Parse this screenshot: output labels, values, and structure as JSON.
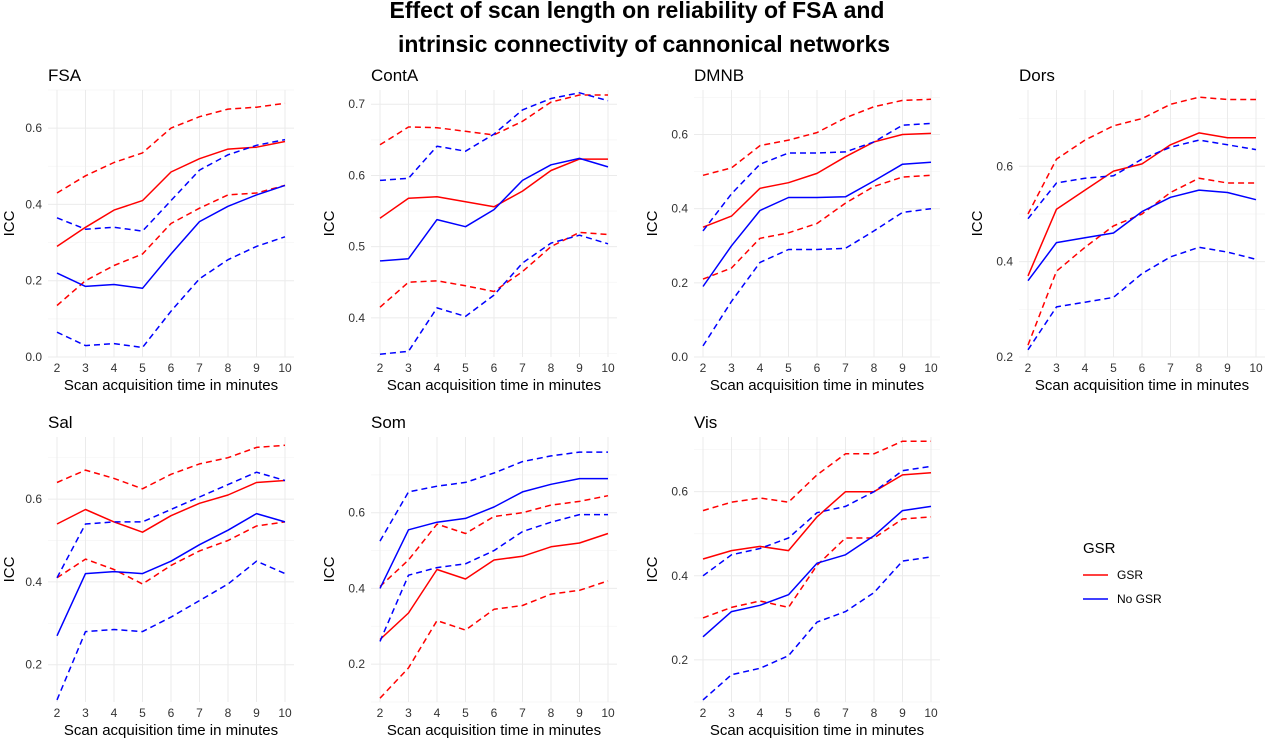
{
  "figure": {
    "title_line1": "Effect of scan length on reliability of FSA and",
    "title_line2": "intrinsic connectivity of cannonical networks"
  },
  "legend": {
    "title": "GSR",
    "items": [
      {
        "label": "GSR",
        "color": "#ff0000"
      },
      {
        "label": "No GSR",
        "color": "#0000ff"
      }
    ]
  },
  "colors": {
    "gsr": "#ff0000",
    "nogsr": "#0000ff"
  },
  "chart_data": [
    {
      "type": "line",
      "title": "FSA",
      "xlabel": "Scan acquisition time in minutes",
      "ylabel": "ICC",
      "x": [
        2,
        3,
        4,
        5,
        6,
        7,
        8,
        9,
        10
      ],
      "xlim": [
        2,
        10
      ],
      "ylim": [
        0,
        0.7
      ],
      "yticks": [
        0.0,
        0.2,
        0.4,
        0.6
      ],
      "ytick_labels": [
        "0.0",
        "0.2",
        "0.4",
        "0.6"
      ],
      "series": [
        {
          "group": "GSR",
          "kind": "estimate",
          "values": [
            0.29,
            0.34,
            0.385,
            0.41,
            0.485,
            0.52,
            0.545,
            0.55,
            0.565
          ]
        },
        {
          "group": "GSR",
          "kind": "upper",
          "values": [
            0.43,
            0.475,
            0.51,
            0.535,
            0.6,
            0.63,
            0.65,
            0.655,
            0.665
          ]
        },
        {
          "group": "GSR",
          "kind": "lower",
          "values": [
            0.135,
            0.2,
            0.24,
            0.27,
            0.35,
            0.39,
            0.425,
            0.43,
            0.45
          ]
        },
        {
          "group": "No GSR",
          "kind": "estimate",
          "values": [
            0.22,
            0.185,
            0.19,
            0.18,
            0.27,
            0.355,
            0.395,
            0.425,
            0.45
          ]
        },
        {
          "group": "No GSR",
          "kind": "upper",
          "values": [
            0.365,
            0.335,
            0.34,
            0.33,
            0.41,
            0.49,
            0.53,
            0.555,
            0.57
          ]
        },
        {
          "group": "No GSR",
          "kind": "lower",
          "values": [
            0.065,
            0.03,
            0.035,
            0.025,
            0.12,
            0.205,
            0.255,
            0.29,
            0.315
          ]
        }
      ]
    },
    {
      "type": "line",
      "title": "ContA",
      "xlabel": "Scan acquisition time in minutes",
      "ylabel": "ICC",
      "x": [
        2,
        3,
        4,
        5,
        6,
        7,
        8,
        9,
        10
      ],
      "xlim": [
        2,
        10
      ],
      "ylim": [
        0.345,
        0.72
      ],
      "yticks": [
        0.4,
        0.5,
        0.6,
        0.7
      ],
      "ytick_labels": [
        "0.4",
        "0.5",
        "0.6",
        "0.7"
      ],
      "series": [
        {
          "group": "GSR",
          "kind": "estimate",
          "values": [
            0.54,
            0.568,
            0.57,
            0.563,
            0.556,
            0.578,
            0.607,
            0.623,
            0.623
          ]
        },
        {
          "group": "GSR",
          "kind": "upper",
          "values": [
            0.643,
            0.668,
            0.667,
            0.662,
            0.657,
            0.676,
            0.703,
            0.713,
            0.713
          ]
        },
        {
          "group": "GSR",
          "kind": "lower",
          "values": [
            0.415,
            0.45,
            0.452,
            0.445,
            0.437,
            0.465,
            0.5,
            0.52,
            0.517
          ]
        },
        {
          "group": "No GSR",
          "kind": "estimate",
          "values": [
            0.48,
            0.483,
            0.538,
            0.528,
            0.552,
            0.593,
            0.615,
            0.624,
            0.612
          ]
        },
        {
          "group": "No GSR",
          "kind": "upper",
          "values": [
            0.593,
            0.596,
            0.641,
            0.634,
            0.658,
            0.692,
            0.708,
            0.716,
            0.705
          ]
        },
        {
          "group": "No GSR",
          "kind": "lower",
          "values": [
            0.349,
            0.353,
            0.414,
            0.402,
            0.432,
            0.477,
            0.505,
            0.516,
            0.504
          ]
        }
      ]
    },
    {
      "type": "line",
      "title": "DMNB",
      "xlabel": "Scan acquisition time in minutes",
      "ylabel": "ICC",
      "x": [
        2,
        3,
        4,
        5,
        6,
        7,
        8,
        9,
        10
      ],
      "xlim": [
        2,
        10
      ],
      "ylim": [
        0,
        0.72
      ],
      "yticks": [
        0.0,
        0.2,
        0.4,
        0.6
      ],
      "ytick_labels": [
        "0.0",
        "0.2",
        "0.4",
        "0.6"
      ],
      "series": [
        {
          "group": "GSR",
          "kind": "estimate",
          "values": [
            0.35,
            0.38,
            0.455,
            0.47,
            0.495,
            0.54,
            0.58,
            0.6,
            0.603
          ]
        },
        {
          "group": "GSR",
          "kind": "upper",
          "values": [
            0.49,
            0.51,
            0.57,
            0.585,
            0.605,
            0.645,
            0.675,
            0.692,
            0.695
          ]
        },
        {
          "group": "GSR",
          "kind": "lower",
          "values": [
            0.21,
            0.24,
            0.32,
            0.335,
            0.36,
            0.415,
            0.46,
            0.485,
            0.49
          ]
        },
        {
          "group": "No GSR",
          "kind": "estimate",
          "values": [
            0.19,
            0.3,
            0.395,
            0.43,
            0.43,
            0.432,
            0.475,
            0.52,
            0.525
          ]
        },
        {
          "group": "No GSR",
          "kind": "upper",
          "values": [
            0.34,
            0.44,
            0.52,
            0.55,
            0.55,
            0.553,
            0.58,
            0.625,
            0.63
          ]
        },
        {
          "group": "No GSR",
          "kind": "lower",
          "values": [
            0.03,
            0.15,
            0.255,
            0.29,
            0.29,
            0.293,
            0.34,
            0.39,
            0.4
          ]
        }
      ]
    },
    {
      "type": "line",
      "title": "Dors",
      "xlabel": "Scan acquisition time in minutes",
      "ylabel": "ICC",
      "x": [
        2,
        3,
        4,
        5,
        6,
        7,
        8,
        9,
        10
      ],
      "xlim": [
        2,
        10
      ],
      "ylim": [
        0.2,
        0.76
      ],
      "yticks": [
        0.2,
        0.4,
        0.6
      ],
      "ytick_labels": [
        "0.2",
        "0.4",
        "0.6"
      ],
      "series": [
        {
          "group": "GSR",
          "kind": "estimate",
          "values": [
            0.37,
            0.51,
            0.55,
            0.59,
            0.605,
            0.645,
            0.67,
            0.66,
            0.66
          ]
        },
        {
          "group": "GSR",
          "kind": "upper",
          "values": [
            0.5,
            0.615,
            0.655,
            0.685,
            0.7,
            0.73,
            0.745,
            0.74,
            0.74
          ]
        },
        {
          "group": "GSR",
          "kind": "lower",
          "values": [
            0.225,
            0.38,
            0.43,
            0.475,
            0.5,
            0.545,
            0.575,
            0.565,
            0.565
          ]
        },
        {
          "group": "No GSR",
          "kind": "estimate",
          "values": [
            0.36,
            0.44,
            0.45,
            0.46,
            0.505,
            0.535,
            0.55,
            0.545,
            0.53
          ]
        },
        {
          "group": "No GSR",
          "kind": "upper",
          "values": [
            0.49,
            0.565,
            0.575,
            0.58,
            0.615,
            0.64,
            0.655,
            0.645,
            0.635
          ]
        },
        {
          "group": "No GSR",
          "kind": "lower",
          "values": [
            0.215,
            0.305,
            0.315,
            0.325,
            0.375,
            0.41,
            0.43,
            0.42,
            0.405
          ]
        }
      ]
    },
    {
      "type": "line",
      "title": "Sal",
      "xlabel": "Scan acquisition time in minutes",
      "ylabel": "ICC",
      "x": [
        2,
        3,
        4,
        5,
        6,
        7,
        8,
        9,
        10
      ],
      "xlim": [
        2,
        10
      ],
      "ylim": [
        0.11,
        0.75
      ],
      "yticks": [
        0.2,
        0.4,
        0.6
      ],
      "ytick_labels": [
        "0.2",
        "0.4",
        "0.6"
      ],
      "series": [
        {
          "group": "GSR",
          "kind": "estimate",
          "values": [
            0.54,
            0.575,
            0.545,
            0.52,
            0.56,
            0.59,
            0.61,
            0.64,
            0.645
          ]
        },
        {
          "group": "GSR",
          "kind": "upper",
          "values": [
            0.64,
            0.67,
            0.65,
            0.625,
            0.66,
            0.685,
            0.7,
            0.725,
            0.73
          ]
        },
        {
          "group": "GSR",
          "kind": "lower",
          "values": [
            0.41,
            0.455,
            0.43,
            0.395,
            0.44,
            0.475,
            0.5,
            0.535,
            0.545
          ]
        },
        {
          "group": "No GSR",
          "kind": "estimate",
          "values": [
            0.27,
            0.42,
            0.425,
            0.42,
            0.45,
            0.49,
            0.525,
            0.565,
            0.545
          ]
        },
        {
          "group": "No GSR",
          "kind": "upper",
          "values": [
            0.41,
            0.54,
            0.545,
            0.545,
            0.575,
            0.605,
            0.635,
            0.665,
            0.645
          ]
        },
        {
          "group": "No GSR",
          "kind": "lower",
          "values": [
            0.115,
            0.28,
            0.285,
            0.28,
            0.315,
            0.355,
            0.395,
            0.45,
            0.42
          ]
        }
      ]
    },
    {
      "type": "line",
      "title": "Som",
      "xlabel": "Scan acquisition time in minutes",
      "ylabel": "ICC",
      "x": [
        2,
        3,
        4,
        5,
        6,
        7,
        8,
        9,
        10
      ],
      "xlim": [
        2,
        10
      ],
      "ylim": [
        0.1,
        0.8
      ],
      "yticks": [
        0.2,
        0.4,
        0.6
      ],
      "ytick_labels": [
        "0.2",
        "0.4",
        "0.6"
      ],
      "series": [
        {
          "group": "GSR",
          "kind": "estimate",
          "values": [
            0.265,
            0.335,
            0.45,
            0.425,
            0.475,
            0.485,
            0.51,
            0.52,
            0.545
          ]
        },
        {
          "group": "GSR",
          "kind": "upper",
          "values": [
            0.405,
            0.475,
            0.57,
            0.545,
            0.59,
            0.6,
            0.62,
            0.63,
            0.645
          ]
        },
        {
          "group": "GSR",
          "kind": "lower",
          "values": [
            0.11,
            0.19,
            0.315,
            0.29,
            0.345,
            0.355,
            0.385,
            0.395,
            0.42
          ]
        },
        {
          "group": "No GSR",
          "kind": "estimate",
          "values": [
            0.4,
            0.555,
            0.575,
            0.585,
            0.615,
            0.655,
            0.675,
            0.69,
            0.69
          ]
        },
        {
          "group": "No GSR",
          "kind": "upper",
          "values": [
            0.525,
            0.655,
            0.67,
            0.68,
            0.705,
            0.735,
            0.75,
            0.76,
            0.76
          ]
        },
        {
          "group": "No GSR",
          "kind": "lower",
          "values": [
            0.26,
            0.435,
            0.455,
            0.465,
            0.5,
            0.55,
            0.575,
            0.595,
            0.595
          ]
        }
      ]
    },
    {
      "type": "line",
      "title": "Vis",
      "xlabel": "Scan acquisition time in minutes",
      "ylabel": "ICC",
      "x": [
        2,
        3,
        4,
        5,
        6,
        7,
        8,
        9,
        10
      ],
      "xlim": [
        2,
        10
      ],
      "ylim": [
        0.1,
        0.73
      ],
      "yticks": [
        0.2,
        0.4,
        0.6
      ],
      "ytick_labels": [
        "0.2",
        "0.4",
        "0.6"
      ],
      "series": [
        {
          "group": "GSR",
          "kind": "estimate",
          "values": [
            0.44,
            0.46,
            0.47,
            0.46,
            0.54,
            0.6,
            0.6,
            0.64,
            0.645
          ]
        },
        {
          "group": "GSR",
          "kind": "upper",
          "values": [
            0.555,
            0.575,
            0.585,
            0.575,
            0.64,
            0.69,
            0.69,
            0.72,
            0.72
          ]
        },
        {
          "group": "GSR",
          "kind": "lower",
          "values": [
            0.3,
            0.325,
            0.34,
            0.325,
            0.425,
            0.49,
            0.49,
            0.535,
            0.54
          ]
        },
        {
          "group": "No GSR",
          "kind": "estimate",
          "values": [
            0.255,
            0.315,
            0.33,
            0.355,
            0.43,
            0.45,
            0.495,
            0.555,
            0.565
          ]
        },
        {
          "group": "No GSR",
          "kind": "upper",
          "values": [
            0.4,
            0.45,
            0.465,
            0.49,
            0.55,
            0.565,
            0.6,
            0.65,
            0.66
          ]
        },
        {
          "group": "No GSR",
          "kind": "lower",
          "values": [
            0.105,
            0.165,
            0.18,
            0.21,
            0.29,
            0.315,
            0.36,
            0.435,
            0.445
          ]
        }
      ]
    }
  ]
}
